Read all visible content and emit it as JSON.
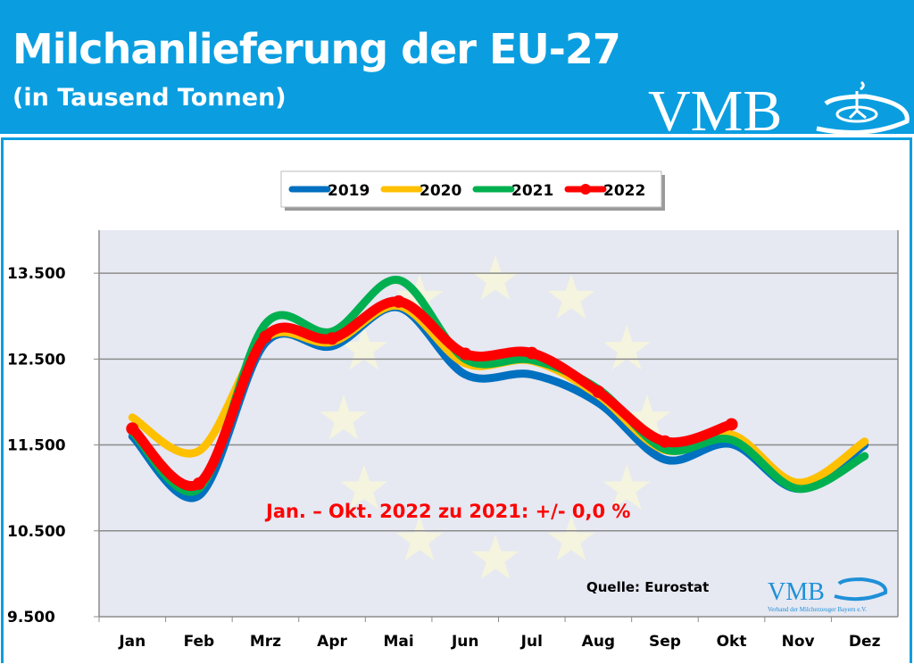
{
  "header": {
    "title": "Milchanlieferung der EU-27",
    "subtitle": "(in Tausend Tonnen)",
    "logo_text": "VMB",
    "background_color": "#0a9ee0"
  },
  "chart_data": {
    "type": "line",
    "title": "Milchanlieferung der EU-27",
    "subtitle": "(in Tausend Tonnen)",
    "categories": [
      "Jan",
      "Feb",
      "Mrz",
      "Apr",
      "Mai",
      "Jun",
      "Jul",
      "Aug",
      "Sep",
      "Okt",
      "Nov",
      "Dez"
    ],
    "ylim": [
      9500,
      14000
    ],
    "yticks": [
      9500,
      10500,
      11500,
      12500,
      13500
    ],
    "ytick_labels": [
      "9.500",
      "10.500",
      "11.500",
      "12.500",
      "13.500"
    ],
    "grid": true,
    "legend_position": "top-center",
    "series": [
      {
        "name": "2019",
        "color": "#0070c0",
        "markers": false,
        "values": [
          11600,
          10910,
          12690,
          12650,
          13100,
          12320,
          12320,
          11990,
          11330,
          11510,
          10990,
          11500
        ]
      },
      {
        "name": "2020",
        "color": "#ffc000",
        "markers": false,
        "values": [
          11820,
          11430,
          12740,
          12700,
          13120,
          12450,
          12480,
          12080,
          11440,
          11620,
          11060,
          11540
        ]
      },
      {
        "name": "2021",
        "color": "#00b050",
        "markers": false,
        "values": [
          11650,
          10990,
          12910,
          12820,
          13420,
          12500,
          12490,
          12150,
          11450,
          11560,
          10990,
          11370
        ]
      },
      {
        "name": "2022",
        "color": "#ff0000",
        "markers": true,
        "values": [
          11690,
          11050,
          12760,
          12740,
          13170,
          12560,
          12570,
          12120,
          11540,
          11740,
          null,
          null
        ]
      }
    ],
    "annotation": "Jan. – Okt.  2022 zu 2021: +/- 0,0 %",
    "source": "Quelle: Eurostat",
    "watermark_logo": "VMB",
    "watermark_caption": "Verband der Milcherzeuger Bayern e.V."
  }
}
